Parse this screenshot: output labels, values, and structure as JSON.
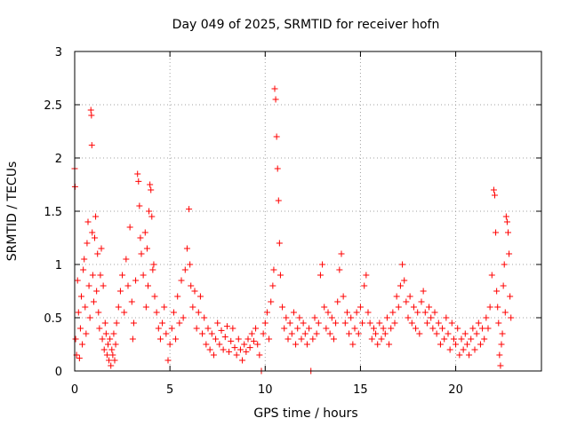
{
  "chart_data": {
    "type": "scatter",
    "title": "Day 049 of 2025, SRMTID for receiver hofn",
    "xlabel": "GPS time / hours",
    "ylabel": "SRMTID / TECUs",
    "xlim": [
      0,
      24.5
    ],
    "ylim": [
      0,
      3
    ],
    "xticks": [
      0,
      5,
      10,
      15,
      20
    ],
    "xtick_labels": [
      "0",
      "5",
      "10",
      "15",
      "20"
    ],
    "yticks": [
      0,
      0.5,
      1,
      1.5,
      2,
      2.5,
      3
    ],
    "ytick_labels": [
      "0",
      "0.5",
      "1",
      "1.5",
      "2",
      "2.5",
      "3"
    ],
    "grid": true,
    "marker": "+",
    "color": "#ff0000",
    "series": [
      {
        "name": "SRMTID",
        "points": [
          [
            0.0,
            1.9
          ],
          [
            0.02,
            1.73
          ],
          [
            0.05,
            0.3
          ],
          [
            0.1,
            0.15
          ],
          [
            0.15,
            0.85
          ],
          [
            0.2,
            0.55
          ],
          [
            0.25,
            0.12
          ],
          [
            0.3,
            0.4
          ],
          [
            0.35,
            0.7
          ],
          [
            0.4,
            0.25
          ],
          [
            0.45,
            0.95
          ],
          [
            0.5,
            1.05
          ],
          [
            0.55,
            0.6
          ],
          [
            0.6,
            0.35
          ],
          [
            0.65,
            1.2
          ],
          [
            0.7,
            1.4
          ],
          [
            0.75,
            0.8
          ],
          [
            0.8,
            0.5
          ],
          [
            0.85,
            2.45
          ],
          [
            0.88,
            2.4
          ],
          [
            0.9,
            2.12
          ],
          [
            0.92,
            1.3
          ],
          [
            0.95,
            0.9
          ],
          [
            1.0,
            0.65
          ],
          [
            1.05,
            1.25
          ],
          [
            1.1,
            1.45
          ],
          [
            1.15,
            0.75
          ],
          [
            1.2,
            1.1
          ],
          [
            1.25,
            0.55
          ],
          [
            1.3,
            0.4
          ],
          [
            1.35,
            0.9
          ],
          [
            1.4,
            1.15
          ],
          [
            1.45,
            0.3
          ],
          [
            1.5,
            0.8
          ],
          [
            1.55,
            0.2
          ],
          [
            1.6,
            0.45
          ],
          [
            1.65,
            0.35
          ],
          [
            1.7,
            0.15
          ],
          [
            1.75,
            0.25
          ],
          [
            1.8,
            0.1
          ],
          [
            1.85,
            0.3
          ],
          [
            1.9,
            0.05
          ],
          [
            1.95,
            0.2
          ],
          [
            2.0,
            0.15
          ],
          [
            2.05,
            0.35
          ],
          [
            2.1,
            0.1
          ],
          [
            2.15,
            0.25
          ],
          [
            2.2,
            0.45
          ],
          [
            2.3,
            0.6
          ],
          [
            2.4,
            0.75
          ],
          [
            2.5,
            0.9
          ],
          [
            2.6,
            0.55
          ],
          [
            2.7,
            1.05
          ],
          [
            2.8,
            0.8
          ],
          [
            2.9,
            1.35
          ],
          [
            3.0,
            0.65
          ],
          [
            3.05,
            0.3
          ],
          [
            3.1,
            0.45
          ],
          [
            3.2,
            0.85
          ],
          [
            3.3,
            1.85
          ],
          [
            3.35,
            1.78
          ],
          [
            3.4,
            1.55
          ],
          [
            3.45,
            1.25
          ],
          [
            3.5,
            1.1
          ],
          [
            3.6,
            0.9
          ],
          [
            3.7,
            1.3
          ],
          [
            3.75,
            0.6
          ],
          [
            3.8,
            1.15
          ],
          [
            3.85,
            0.8
          ],
          [
            3.9,
            1.5
          ],
          [
            3.95,
            1.75
          ],
          [
            4.0,
            1.7
          ],
          [
            4.05,
            1.45
          ],
          [
            4.1,
            0.95
          ],
          [
            4.15,
            1.0
          ],
          [
            4.2,
            0.7
          ],
          [
            4.3,
            0.55
          ],
          [
            4.4,
            0.4
          ],
          [
            4.5,
            0.3
          ],
          [
            4.6,
            0.45
          ],
          [
            4.7,
            0.6
          ],
          [
            4.8,
            0.35
          ],
          [
            4.9,
            0.1
          ],
          [
            5.0,
            0.25
          ],
          [
            5.1,
            0.4
          ],
          [
            5.2,
            0.55
          ],
          [
            5.3,
            0.3
          ],
          [
            5.4,
            0.7
          ],
          [
            5.5,
            0.45
          ],
          [
            5.6,
            0.85
          ],
          [
            5.7,
            0.5
          ],
          [
            5.8,
            0.95
          ],
          [
            5.9,
            1.15
          ],
          [
            6.0,
            1.52
          ],
          [
            6.05,
            1.0
          ],
          [
            6.1,
            0.8
          ],
          [
            6.2,
            0.6
          ],
          [
            6.3,
            0.75
          ],
          [
            6.4,
            0.4
          ],
          [
            6.5,
            0.55
          ],
          [
            6.6,
            0.7
          ],
          [
            6.7,
            0.35
          ],
          [
            6.8,
            0.5
          ],
          [
            6.9,
            0.25
          ],
          [
            7.0,
            0.4
          ],
          [
            7.1,
            0.2
          ],
          [
            7.2,
            0.35
          ],
          [
            7.3,
            0.15
          ],
          [
            7.4,
            0.3
          ],
          [
            7.5,
            0.45
          ],
          [
            7.6,
            0.25
          ],
          [
            7.7,
            0.38
          ],
          [
            7.8,
            0.2
          ],
          [
            7.9,
            0.32
          ],
          [
            8.0,
            0.42
          ],
          [
            8.1,
            0.18
          ],
          [
            8.2,
            0.28
          ],
          [
            8.3,
            0.4
          ],
          [
            8.4,
            0.22
          ],
          [
            8.5,
            0.15
          ],
          [
            8.6,
            0.3
          ],
          [
            8.7,
            0.2
          ],
          [
            8.8,
            0.1
          ],
          [
            8.9,
            0.25
          ],
          [
            9.0,
            0.18
          ],
          [
            9.1,
            0.3
          ],
          [
            9.2,
            0.22
          ],
          [
            9.3,
            0.35
          ],
          [
            9.4,
            0.28
          ],
          [
            9.5,
            0.4
          ],
          [
            9.6,
            0.25
          ],
          [
            9.7,
            0.15
          ],
          [
            9.8,
            0.0
          ],
          [
            9.9,
            0.35
          ],
          [
            10.0,
            0.45
          ],
          [
            10.1,
            0.55
          ],
          [
            10.2,
            0.3
          ],
          [
            10.3,
            0.65
          ],
          [
            10.4,
            0.8
          ],
          [
            10.45,
            0.95
          ],
          [
            10.5,
            2.65
          ],
          [
            10.55,
            2.55
          ],
          [
            10.6,
            2.2
          ],
          [
            10.65,
            1.9
          ],
          [
            10.7,
            1.6
          ],
          [
            10.75,
            1.2
          ],
          [
            10.8,
            0.9
          ],
          [
            10.9,
            0.6
          ],
          [
            11.0,
            0.4
          ],
          [
            11.1,
            0.5
          ],
          [
            11.2,
            0.3
          ],
          [
            11.3,
            0.45
          ],
          [
            11.4,
            0.35
          ],
          [
            11.5,
            0.55
          ],
          [
            11.6,
            0.25
          ],
          [
            11.7,
            0.4
          ],
          [
            11.8,
            0.5
          ],
          [
            11.9,
            0.3
          ],
          [
            12.0,
            0.45
          ],
          [
            12.1,
            0.35
          ],
          [
            12.2,
            0.25
          ],
          [
            12.3,
            0.4
          ],
          [
            12.4,
            0.0
          ],
          [
            12.5,
            0.3
          ],
          [
            12.6,
            0.5
          ],
          [
            12.7,
            0.35
          ],
          [
            12.8,
            0.45
          ],
          [
            12.9,
            0.9
          ],
          [
            13.0,
            1.0
          ],
          [
            13.1,
            0.6
          ],
          [
            13.2,
            0.4
          ],
          [
            13.3,
            0.55
          ],
          [
            13.4,
            0.35
          ],
          [
            13.5,
            0.5
          ],
          [
            13.6,
            0.3
          ],
          [
            13.7,
            0.45
          ],
          [
            13.8,
            0.65
          ],
          [
            13.9,
            0.95
          ],
          [
            14.0,
            1.1
          ],
          [
            14.1,
            0.7
          ],
          [
            14.2,
            0.45
          ],
          [
            14.3,
            0.55
          ],
          [
            14.4,
            0.35
          ],
          [
            14.5,
            0.5
          ],
          [
            14.6,
            0.25
          ],
          [
            14.7,
            0.4
          ],
          [
            14.8,
            0.55
          ],
          [
            14.9,
            0.35
          ],
          [
            15.0,
            0.6
          ],
          [
            15.1,
            0.45
          ],
          [
            15.2,
            0.8
          ],
          [
            15.3,
            0.9
          ],
          [
            15.4,
            0.55
          ],
          [
            15.5,
            0.45
          ],
          [
            15.6,
            0.3
          ],
          [
            15.7,
            0.4
          ],
          [
            15.8,
            0.35
          ],
          [
            15.9,
            0.25
          ],
          [
            16.0,
            0.45
          ],
          [
            16.1,
            0.3
          ],
          [
            16.2,
            0.4
          ],
          [
            16.3,
            0.35
          ],
          [
            16.4,
            0.5
          ],
          [
            16.5,
            0.25
          ],
          [
            16.6,
            0.4
          ],
          [
            16.7,
            0.55
          ],
          [
            16.8,
            0.45
          ],
          [
            16.9,
            0.7
          ],
          [
            17.0,
            0.6
          ],
          [
            17.1,
            0.8
          ],
          [
            17.2,
            1.0
          ],
          [
            17.3,
            0.85
          ],
          [
            17.4,
            0.65
          ],
          [
            17.5,
            0.5
          ],
          [
            17.6,
            0.7
          ],
          [
            17.7,
            0.45
          ],
          [
            17.8,
            0.6
          ],
          [
            17.9,
            0.4
          ],
          [
            18.0,
            0.55
          ],
          [
            18.1,
            0.35
          ],
          [
            18.2,
            0.65
          ],
          [
            18.3,
            0.75
          ],
          [
            18.4,
            0.55
          ],
          [
            18.5,
            0.45
          ],
          [
            18.6,
            0.6
          ],
          [
            18.7,
            0.5
          ],
          [
            18.8,
            0.4
          ],
          [
            18.9,
            0.55
          ],
          [
            19.0,
            0.35
          ],
          [
            19.1,
            0.45
          ],
          [
            19.2,
            0.25
          ],
          [
            19.3,
            0.4
          ],
          [
            19.4,
            0.3
          ],
          [
            19.5,
            0.5
          ],
          [
            19.6,
            0.35
          ],
          [
            19.7,
            0.2
          ],
          [
            19.8,
            0.45
          ],
          [
            19.9,
            0.3
          ],
          [
            20.0,
            0.25
          ],
          [
            20.1,
            0.4
          ],
          [
            20.2,
            0.15
          ],
          [
            20.3,
            0.3
          ],
          [
            20.4,
            0.2
          ],
          [
            20.5,
            0.35
          ],
          [
            20.6,
            0.25
          ],
          [
            20.7,
            0.15
          ],
          [
            20.8,
            0.3
          ],
          [
            20.9,
            0.4
          ],
          [
            21.0,
            0.2
          ],
          [
            21.1,
            0.35
          ],
          [
            21.2,
            0.45
          ],
          [
            21.3,
            0.25
          ],
          [
            21.4,
            0.4
          ],
          [
            21.5,
            0.3
          ],
          [
            21.6,
            0.5
          ],
          [
            21.7,
            0.4
          ],
          [
            21.8,
            0.6
          ],
          [
            21.9,
            0.9
          ],
          [
            22.0,
            1.7
          ],
          [
            22.05,
            1.65
          ],
          [
            22.1,
            1.3
          ],
          [
            22.15,
            0.75
          ],
          [
            22.2,
            0.6
          ],
          [
            22.25,
            0.45
          ],
          [
            22.3,
            0.15
          ],
          [
            22.35,
            0.05
          ],
          [
            22.4,
            0.25
          ],
          [
            22.45,
            0.35
          ],
          [
            22.5,
            0.8
          ],
          [
            22.55,
            1.0
          ],
          [
            22.6,
            0.55
          ],
          [
            22.65,
            1.45
          ],
          [
            22.7,
            1.4
          ],
          [
            22.75,
            1.3
          ],
          [
            22.8,
            1.1
          ],
          [
            22.85,
            0.7
          ],
          [
            22.9,
            0.5
          ]
        ]
      }
    ]
  }
}
